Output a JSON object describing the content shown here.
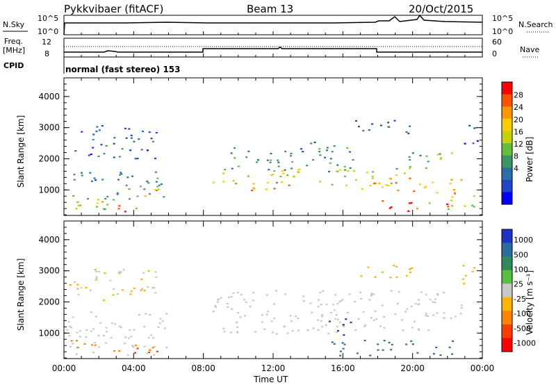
{
  "header": {
    "radar": "Pykkvibaer (fitACF)",
    "beam": "Beam 13",
    "date": "20/Oct/2015"
  },
  "strips": {
    "nsky_label": "N.Sky",
    "nsearch_label": "N.Search",
    "nsky_ticks": [
      "10^5",
      "10^0"
    ],
    "nsearch_ticks": [
      "10^5",
      "10^0"
    ],
    "freq_label": "Freq.",
    "freq_unit": "[MHz]",
    "freq_ticks": [
      "12",
      "8"
    ],
    "nave_label": "Nave",
    "nave_ticks": [
      "60",
      "0"
    ],
    "cpid_label": "CPID",
    "cpid_text": "normal (fast stereo) 153"
  },
  "colorbars": {
    "power": {
      "label": "Power [dB]",
      "ticks": [
        "28",
        "24",
        "20",
        "16",
        "12",
        "8",
        "4"
      ],
      "colors": [
        "#ff0000",
        "#ff5000",
        "#ff9600",
        "#ffcc00",
        "#c8d200",
        "#64c03c",
        "#3c9664",
        "#286eaa",
        "#1e46c8",
        "#0000ff"
      ]
    },
    "velocity": {
      "label": "Velocity [m s⁻¹]",
      "ticks": [
        "1000",
        "500",
        "100",
        "25",
        "-25",
        "-100",
        "-500",
        "-1000"
      ],
      "colors": [
        "#1e32c8",
        "#286ea0",
        "#2e8b57",
        "#55c040",
        "#c8c8c8",
        "#ffb400",
        "#ff8200",
        "#ff3c00",
        "#ff0000"
      ]
    }
  },
  "chart_data": [
    {
      "type": "heatmap",
      "name": "Power",
      "title": "Pykkvibaer (fitACF) Beam 13 20/Oct/2015",
      "ylabel": "Slant Range [km]",
      "xlabel": "Time UT",
      "x_ticks": [
        "00:00",
        "04:00",
        "08:00",
        "12:00",
        "16:00",
        "20:00",
        "00:00"
      ],
      "y_ticks": [
        "1000",
        "2000",
        "3000",
        "4000"
      ],
      "xlim_hours": [
        0,
        24
      ],
      "ylim_km": [
        180,
        4600
      ],
      "colorbar_label": "Power [dB]",
      "colorbar_range": [
        0,
        30
      ],
      "blobs": [
        {
          "t0": 0.0,
          "t1": 2.8,
          "r0": 300,
          "r1": 900,
          "v": 13
        },
        {
          "t0": 0.3,
          "t1": 2.2,
          "r0": 500,
          "r1": 800,
          "v": 20
        },
        {
          "t0": 2.4,
          "t1": 4.2,
          "r0": 300,
          "r1": 600,
          "v": 26
        },
        {
          "t0": 3.0,
          "t1": 5.8,
          "r0": 600,
          "r1": 1600,
          "v": 10
        },
        {
          "t0": 4.6,
          "t1": 5.8,
          "r0": 700,
          "r1": 1200,
          "v": 16
        },
        {
          "t0": 0.0,
          "t1": 4.5,
          "r0": 1300,
          "r1": 1700,
          "v": 8
        },
        {
          "t0": 0.4,
          "t1": 5.3,
          "r0": 2000,
          "r1": 3100,
          "v": 6
        },
        {
          "t0": 8.5,
          "t1": 13.5,
          "r0": 1200,
          "r1": 1800,
          "v": 16
        },
        {
          "t0": 10.5,
          "t1": 14.5,
          "r0": 1000,
          "r1": 1300,
          "v": 24
        },
        {
          "t0": 9.5,
          "t1": 16.8,
          "r0": 1600,
          "r1": 2400,
          "v": 10
        },
        {
          "t0": 13.5,
          "t1": 15.5,
          "r0": 2200,
          "r1": 2600,
          "v": 7
        },
        {
          "t0": 14.5,
          "t1": 19.5,
          "r0": 1100,
          "r1": 1700,
          "v": 17
        },
        {
          "t0": 17.0,
          "t1": 22.8,
          "r0": 900,
          "r1": 1400,
          "v": 21
        },
        {
          "t0": 18.0,
          "t1": 20.0,
          "r0": 300,
          "r1": 700,
          "v": 28
        },
        {
          "t0": 20.0,
          "t1": 22.5,
          "r0": 400,
          "r1": 700,
          "v": 24
        },
        {
          "t0": 19.0,
          "t1": 22.5,
          "r0": 1700,
          "r1": 2300,
          "v": 12
        },
        {
          "t0": 16.5,
          "t1": 20.0,
          "r0": 2800,
          "r1": 3300,
          "v": 7
        },
        {
          "t0": 22.8,
          "t1": 24.0,
          "r0": 2500,
          "r1": 3200,
          "v": 6
        },
        {
          "t0": 22.0,
          "t1": 24.0,
          "r0": 400,
          "r1": 900,
          "v": 16
        }
      ]
    },
    {
      "type": "heatmap",
      "name": "Velocity",
      "ylabel": "Slant Range [km]",
      "xlabel": "Time UT",
      "x_ticks": [
        "00:00",
        "04:00",
        "08:00",
        "12:00",
        "16:00",
        "20:00",
        "00:00"
      ],
      "y_ticks": [
        "1000",
        "2000",
        "3000",
        "4000"
      ],
      "xlim_hours": [
        0,
        24
      ],
      "ylim_km": [
        180,
        4600
      ],
      "colorbar_label": "Velocity [m s⁻¹]",
      "colorbar_range": [
        -1000,
        1000
      ],
      "blobs": [
        {
          "t0": 0.0,
          "t1": 6.0,
          "r0": 300,
          "r1": 1700,
          "v": 0
        },
        {
          "t0": 0.2,
          "t1": 2.5,
          "r0": 450,
          "r1": 800,
          "v": -300
        },
        {
          "t0": 2.5,
          "t1": 5.5,
          "r0": 300,
          "r1": 700,
          "v": -500
        },
        {
          "t0": 0.3,
          "t1": 5.5,
          "r0": 2000,
          "r1": 3100,
          "v": -20
        },
        {
          "t0": 8.5,
          "t1": 16.0,
          "r0": 1000,
          "r1": 2400,
          "v": 0
        },
        {
          "t0": 14.5,
          "t1": 22.8,
          "r0": 1100,
          "r1": 2400,
          "v": 0
        },
        {
          "t0": 15.0,
          "t1": 16.5,
          "r0": 900,
          "r1": 1500,
          "v": 800
        },
        {
          "t0": 15.0,
          "t1": 22.5,
          "r0": 300,
          "r1": 800,
          "v": 300
        },
        {
          "t0": 16.5,
          "t1": 20.0,
          "r0": 2800,
          "r1": 3300,
          "v": -60
        },
        {
          "t0": 22.8,
          "t1": 24.0,
          "r0": 2500,
          "r1": 3200,
          "v": -60
        }
      ]
    }
  ]
}
